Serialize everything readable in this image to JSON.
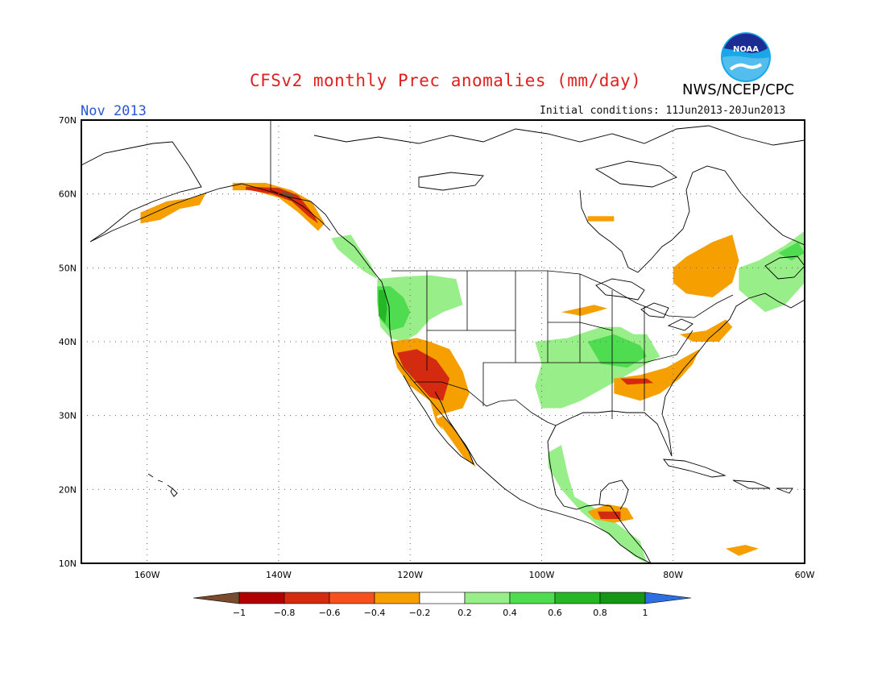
{
  "header": {
    "title": "CFSv2 monthly Prec anomalies (mm/day)",
    "month": "Nov 2013",
    "initial_conditions": "Initial conditions: 11Jun2013-20Jun2013",
    "agency": "NWS/NCEP/CPC",
    "logo_text": "NOAA"
  },
  "map": {
    "lat_labels": [
      "70N",
      "60N",
      "50N",
      "40N",
      "30N",
      "20N",
      "10N"
    ],
    "lon_labels": [
      "160W",
      "140W",
      "120W",
      "100W",
      "80W",
      "60W"
    ],
    "extent": {
      "lon": [
        -170,
        -60
      ],
      "lat": [
        10,
        70
      ]
    }
  },
  "legend": {
    "tick_labels": [
      "-1",
      "-0.8",
      "-0.6",
      "-0.4",
      "-0.2",
      "0.2",
      "0.4",
      "0.6",
      "0.8",
      "1"
    ],
    "colors": [
      "#7a4a2e",
      "#b00000",
      "#d42a10",
      "#f5501e",
      "#f5a000",
      "#ffffff",
      "#98ee88",
      "#50dc50",
      "#26b726",
      "#169616",
      "#2d6fe0"
    ]
  },
  "anomalies": [
    {
      "name": "alaska-sw-dry",
      "color": "#f5a000",
      "points": [
        [
          -161,
          57.5
        ],
        [
          -157,
          59
        ],
        [
          -153,
          59.5
        ],
        [
          -151,
          60.2
        ],
        [
          -152,
          58.5
        ],
        [
          -155,
          58
        ],
        [
          -158,
          56.5
        ],
        [
          -161,
          56
        ]
      ]
    },
    {
      "name": "gulf-alaska-dry",
      "color": "#f5a000",
      "points": [
        [
          -147,
          61.5
        ],
        [
          -142,
          61.5
        ],
        [
          -138,
          60.5
        ],
        [
          -135,
          59
        ],
        [
          -133,
          56
        ],
        [
          -134,
          55
        ],
        [
          -137,
          57.5
        ],
        [
          -140,
          59.5
        ],
        [
          -144,
          60.5
        ],
        [
          -147,
          60.5
        ]
      ]
    },
    {
      "name": "gulf-alaska-wet-red",
      "color": "#d42a10",
      "points": [
        [
          -145,
          61
        ],
        [
          -140,
          60.8
        ],
        [
          -137,
          59.8
        ],
        [
          -134.5,
          57
        ],
        [
          -134,
          56
        ],
        [
          -135.5,
          57
        ],
        [
          -138,
          59
        ],
        [
          -141,
          60
        ],
        [
          -145,
          60.6
        ]
      ]
    },
    {
      "name": "yakutat-darkest",
      "color": "#7a4a2e",
      "points": [
        [
          -140,
          60
        ],
        [
          -138,
          59.4
        ],
        [
          -137.5,
          59.8
        ],
        [
          -139,
          60.3
        ]
      ]
    },
    {
      "name": "bc-coast-wet",
      "color": "#98ee88",
      "points": [
        [
          -132,
          54
        ],
        [
          -129,
          54.5
        ],
        [
          -128,
          53
        ],
        [
          -126,
          50.5
        ],
        [
          -125,
          48.5
        ],
        [
          -127,
          49.5
        ],
        [
          -129,
          51
        ],
        [
          -131,
          52.5
        ]
      ]
    },
    {
      "name": "pacnw-wet",
      "color": "#98ee88",
      "points": [
        [
          -125,
          48.5
        ],
        [
          -121,
          48.8
        ],
        [
          -117,
          49
        ],
        [
          -113,
          48.5
        ],
        [
          -112,
          45
        ],
        [
          -115,
          44
        ],
        [
          -117,
          43
        ],
        [
          -119,
          41
        ],
        [
          -121,
          40
        ],
        [
          -123,
          40.5
        ],
        [
          -124.5,
          42
        ],
        [
          -125,
          45
        ]
      ]
    },
    {
      "name": "pacnw-wet-mid",
      "color": "#50dc50",
      "points": [
        [
          -125,
          47.5
        ],
        [
          -123,
          47.5
        ],
        [
          -121,
          46
        ],
        [
          -120,
          44
        ],
        [
          -121,
          42
        ],
        [
          -123,
          41.5
        ],
        [
          -124.5,
          43
        ],
        [
          -125,
          45.5
        ]
      ]
    },
    {
      "name": "pacnw-wet-dark",
      "color": "#26b726",
      "points": [
        [
          -124.8,
          47
        ],
        [
          -123.8,
          47
        ],
        [
          -123.5,
          44.5
        ],
        [
          -123.8,
          42.5
        ],
        [
          -124.8,
          43.5
        ]
      ]
    },
    {
      "name": "southwest-dry",
      "color": "#f5a000",
      "points": [
        [
          -123,
          40
        ],
        [
          -119,
          40.5
        ],
        [
          -117,
          40
        ],
        [
          -114,
          39
        ],
        [
          -112,
          36
        ],
        [
          -111,
          33
        ],
        [
          -112,
          31
        ],
        [
          -114,
          30.5
        ],
        [
          -116,
          30
        ],
        [
          -115,
          28
        ],
        [
          -113,
          26
        ],
        [
          -111,
          24
        ],
        [
          -113,
          26
        ],
        [
          -116,
          29
        ],
        [
          -117,
          32
        ],
        [
          -120,
          34
        ],
        [
          -122,
          36.5
        ]
      ]
    },
    {
      "name": "southwest-dry-red",
      "color": "#d42a10",
      "points": [
        [
          -122,
          38.5
        ],
        [
          -119,
          39
        ],
        [
          -116,
          37.5
        ],
        [
          -114,
          35
        ],
        [
          -115,
          32
        ],
        [
          -117,
          32.5
        ],
        [
          -119,
          34.5
        ],
        [
          -121,
          36.5
        ]
      ]
    },
    {
      "name": "baja-dry",
      "color": "#f5a000",
      "points": [
        [
          -115,
          30
        ],
        [
          -113,
          28
        ],
        [
          -111,
          25
        ],
        [
          -110,
          23
        ],
        [
          -112,
          24.5
        ],
        [
          -114,
          27
        ],
        [
          -116,
          29.5
        ]
      ]
    },
    {
      "name": "central-plains-wet",
      "color": "#98ee88",
      "points": [
        [
          -101,
          40
        ],
        [
          -96,
          40.5
        ],
        [
          -91,
          42
        ],
        [
          -88,
          42
        ],
        [
          -86,
          41
        ],
        [
          -84,
          41
        ],
        [
          -82,
          38
        ],
        [
          -86,
          36
        ],
        [
          -90,
          34
        ],
        [
          -94,
          32
        ],
        [
          -97,
          31
        ],
        [
          -100,
          31
        ],
        [
          -101,
          34
        ],
        [
          -100,
          37
        ]
      ]
    },
    {
      "name": "ohio-valley-wet",
      "color": "#50dc50",
      "points": [
        [
          -93,
          40
        ],
        [
          -89,
          41
        ],
        [
          -85,
          39.5
        ],
        [
          -84,
          38
        ],
        [
          -87,
          36.5
        ],
        [
          -91,
          37
        ]
      ]
    },
    {
      "name": "southeast-dry",
      "color": "#f5a000",
      "points": [
        [
          -89,
          35
        ],
        [
          -85,
          35.5
        ],
        [
          -81,
          36.5
        ],
        [
          -78,
          38
        ],
        [
          -76,
          39
        ],
        [
          -77,
          37
        ],
        [
          -79,
          35
        ],
        [
          -82,
          33
        ],
        [
          -85,
          32
        ],
        [
          -89,
          33
        ]
      ]
    },
    {
      "name": "southeast-dry-red",
      "color": "#d42a10",
      "points": [
        [
          -88,
          35
        ],
        [
          -84,
          35
        ],
        [
          -83,
          34.4
        ],
        [
          -87,
          34.2
        ]
      ]
    },
    {
      "name": "quebec-dry",
      "color": "#f5a000",
      "points": [
        [
          -80,
          50
        ],
        [
          -78,
          51.5
        ],
        [
          -74,
          53.5
        ],
        [
          -71,
          54.5
        ],
        [
          -70,
          51
        ],
        [
          -71,
          48
        ],
        [
          -74,
          46
        ],
        [
          -78,
          46.5
        ],
        [
          -80,
          48
        ]
      ]
    },
    {
      "name": "northeast-dry",
      "color": "#f5a000",
      "points": [
        [
          -79,
          41
        ],
        [
          -75,
          41.5
        ],
        [
          -72,
          43
        ],
        [
          -71,
          42
        ],
        [
          -73,
          40
        ],
        [
          -77,
          40
        ]
      ]
    },
    {
      "name": "maritimes-wet",
      "color": "#98ee88",
      "points": [
        [
          -70,
          50
        ],
        [
          -67,
          51
        ],
        [
          -63,
          53
        ],
        [
          -60,
          55
        ],
        [
          -60,
          48
        ],
        [
          -63,
          45
        ],
        [
          -66,
          44
        ],
        [
          -70,
          47
        ]
      ]
    },
    {
      "name": "maritimes-wet-mid",
      "color": "#50dc50",
      "points": [
        [
          -64,
          52
        ],
        [
          -61,
          53.5
        ],
        [
          -60,
          52
        ],
        [
          -62,
          51
        ]
      ]
    },
    {
      "name": "hudson-dry",
      "color": "#f5a000",
      "points": [
        [
          -93,
          57
        ],
        [
          -89,
          57
        ],
        [
          -89,
          56.3
        ],
        [
          -93,
          56.3
        ]
      ]
    },
    {
      "name": "midwest-dry",
      "color": "#f5a000",
      "points": [
        [
          -97,
          44
        ],
        [
          -92,
          45
        ],
        [
          -90,
          44.5
        ],
        [
          -94,
          43.5
        ]
      ]
    },
    {
      "name": "mexico-gulf-wet",
      "color": "#98ee88",
      "points": [
        [
          -99,
          25
        ],
        [
          -97,
          26
        ],
        [
          -96,
          22
        ],
        [
          -95,
          19
        ],
        [
          -91,
          17
        ],
        [
          -88,
          15
        ],
        [
          -85,
          13
        ],
        [
          -84,
          10
        ],
        [
          -86,
          11
        ],
        [
          -90,
          14
        ],
        [
          -94,
          17
        ],
        [
          -97,
          20
        ],
        [
          -99,
          23
        ]
      ]
    },
    {
      "name": "guatemala-dry",
      "color": "#f5a000",
      "points": [
        [
          -93,
          17
        ],
        [
          -90,
          18
        ],
        [
          -87,
          17.5
        ],
        [
          -86,
          16
        ],
        [
          -89,
          15.5
        ],
        [
          -92,
          16
        ]
      ]
    },
    {
      "name": "guatemala-dry-red",
      "color": "#d42a10",
      "points": [
        [
          -91.5,
          17
        ],
        [
          -88,
          17
        ],
        [
          -88,
          16
        ],
        [
          -91,
          16
        ]
      ]
    },
    {
      "name": "pr-dry",
      "color": "#f5a000",
      "points": [
        [
          -72,
          12
        ],
        [
          -69,
          12.5
        ],
        [
          -67,
          12
        ],
        [
          -70,
          11
        ]
      ]
    }
  ]
}
